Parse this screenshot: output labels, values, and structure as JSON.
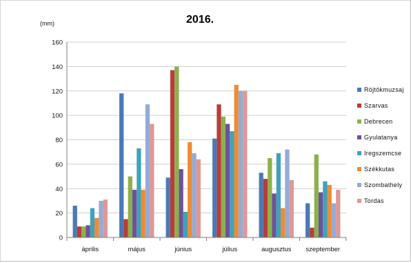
{
  "chart_data": {
    "type": "bar",
    "title": "2016.",
    "ylabel": "(mm)",
    "xlabel": "",
    "ylim": [
      0,
      160
    ],
    "yticks": [
      0,
      20,
      40,
      60,
      80,
      100,
      120,
      140,
      160
    ],
    "grid": true,
    "legend_position": "right",
    "categories": [
      "április",
      "május",
      "június",
      "július",
      "augusztus",
      "szeptember"
    ],
    "series": [
      {
        "name": "Röjtökmuzsaj",
        "color": "#4a7ab5",
        "values": [
          26,
          118,
          49,
          81,
          53,
          28
        ]
      },
      {
        "name": "Szarvas",
        "color": "#b83d3a",
        "values": [
          9,
          15,
          137,
          109,
          48,
          8
        ]
      },
      {
        "name": "Debrecen",
        "color": "#8db04c",
        "values": [
          9,
          50,
          140,
          99,
          65,
          68
        ]
      },
      {
        "name": "Gyulatanya",
        "color": "#6e5299",
        "values": [
          10,
          39,
          56,
          93,
          36,
          37
        ]
      },
      {
        "name": "Iregszemcse",
        "color": "#3fa2bb",
        "values": [
          24,
          73,
          21,
          87,
          69,
          46
        ]
      },
      {
        "name": "Székkutas",
        "color": "#ee8b33",
        "values": [
          16,
          39,
          78,
          125,
          24,
          43
        ]
      },
      {
        "name": "Szombathely",
        "color": "#93acd6",
        "values": [
          30,
          109,
          69,
          120,
          72,
          28
        ]
      },
      {
        "name": "Tordas",
        "color": "#de9896",
        "values": [
          31,
          93,
          64,
          120,
          47,
          39
        ]
      }
    ]
  }
}
